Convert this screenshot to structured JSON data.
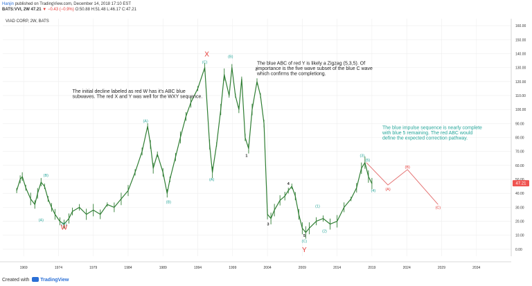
{
  "header": {
    "author": "Hanjin",
    "publish_text": "published on TradingView.com, December 14, 2018 17:10 EST",
    "ohlc_line": "BATS:VVI, 2W  47.21",
    "change": "▼ −0.43 (−0.9%)",
    "ohlc_values": "O:50.88 H:51.48 L:46.17 C:47.21"
  },
  "chart_title": "VIAD CORP, 2W, BATS",
  "price_badge": "47.21",
  "footer": {
    "created_with": "Created with",
    "brand": "TradingView"
  },
  "colors": {
    "candle": "#2e7d32",
    "wave_blue": "#26a69a",
    "wave_red": "#e53935",
    "projection": "#e57373",
    "grid": "#eeeeee",
    "badge": "#ef5350"
  },
  "chart_data": {
    "type": "line",
    "title": "VIAD CORP, 2W, BATS",
    "y_axis": {
      "side": "right",
      "ylim": [
        -5,
        165
      ],
      "ticks": [
        0,
        10,
        20,
        30,
        40,
        50,
        60,
        70,
        80,
        90,
        100,
        110,
        120,
        130,
        140,
        150,
        160
      ],
      "tick_labels": [
        "0.00",
        "10.00",
        "20.00",
        "30.00",
        "40.00",
        "50.00",
        "60.00",
        "70.00",
        "80.00",
        "90.00",
        "100.00",
        "110.00",
        "120.00",
        "130.00",
        "140.00",
        "150.00",
        "160.00"
      ]
    },
    "x_axis": {
      "xlim": [
        1966,
        2039
      ],
      "ticks": [
        1969,
        1974,
        1979,
        1984,
        1989,
        1994,
        1999,
        2004,
        2009,
        2014,
        2019,
        2024,
        2029,
        2034
      ],
      "tick_labels": [
        "1969",
        "1974",
        "1979",
        "1984",
        "1989",
        "1994",
        "1999",
        "2004",
        "2009",
        "2014",
        "2019",
        "2024",
        "2029",
        "2034"
      ]
    },
    "grid": true,
    "series": [
      {
        "values": [
          [
            1968.0,
            42
          ],
          [
            1968.5,
            50
          ],
          [
            1968.8,
            52
          ],
          [
            1969.3,
            44
          ],
          [
            1970.0,
            36
          ],
          [
            1970.6,
            32
          ],
          [
            1971.0,
            40
          ],
          [
            1971.5,
            48
          ],
          [
            1972.0,
            45
          ],
          [
            1972.5,
            36
          ],
          [
            1973.0,
            30
          ],
          [
            1973.5,
            25
          ],
          [
            1974.2,
            20
          ],
          [
            1974.8,
            18
          ],
          [
            1975.5,
            22
          ],
          [
            1976.0,
            27
          ],
          [
            1977.0,
            30
          ],
          [
            1978.0,
            25
          ],
          [
            1979.0,
            28
          ],
          [
            1980.0,
            25
          ],
          [
            1981.0,
            32
          ],
          [
            1982.0,
            30
          ],
          [
            1983.0,
            36
          ],
          [
            1984.0,
            42
          ],
          [
            1985.0,
            55
          ],
          [
            1986.0,
            70
          ],
          [
            1986.8,
            88
          ],
          [
            1987.2,
            75
          ],
          [
            1987.6,
            58
          ],
          [
            1988.2,
            68
          ],
          [
            1989.0,
            55
          ],
          [
            1989.6,
            40
          ],
          [
            1990.0,
            50
          ],
          [
            1990.8,
            66
          ],
          [
            1991.5,
            80
          ],
          [
            1992.3,
            95
          ],
          [
            1993.0,
            105
          ],
          [
            1994.0,
            115
          ],
          [
            1995.0,
            130
          ],
          [
            1995.7,
            75
          ],
          [
            1996.1,
            55
          ],
          [
            1996.7,
            75
          ],
          [
            1997.3,
            100
          ],
          [
            1997.8,
            125
          ],
          [
            1998.5,
            110
          ],
          [
            1998.9,
            130
          ],
          [
            1999.4,
            110
          ],
          [
            1999.9,
            100
          ],
          [
            2000.3,
            122
          ],
          [
            2000.8,
            80
          ],
          [
            2001.3,
            72
          ],
          [
            2001.8,
            100
          ],
          [
            2002.5,
            120
          ],
          [
            2003.0,
            110
          ],
          [
            2003.5,
            90
          ],
          [
            2004.0,
            25
          ],
          [
            2004.5,
            22
          ],
          [
            2005.0,
            28
          ],
          [
            2005.8,
            35
          ],
          [
            2006.5,
            38
          ],
          [
            2007.0,
            42
          ],
          [
            2007.5,
            45
          ],
          [
            2008.0,
            38
          ],
          [
            2008.5,
            25
          ],
          [
            2009.0,
            15
          ],
          [
            2009.5,
            12
          ],
          [
            2010.0,
            15
          ],
          [
            2011.0,
            20
          ],
          [
            2012.0,
            22
          ],
          [
            2013.0,
            18
          ],
          [
            2014.0,
            20
          ],
          [
            2015.0,
            30
          ],
          [
            2016.0,
            36
          ],
          [
            2016.8,
            44
          ],
          [
            2017.5,
            58
          ],
          [
            2018.0,
            62
          ],
          [
            2018.5,
            52
          ],
          [
            2019.0,
            47
          ]
        ]
      }
    ],
    "wave_labels": [
      {
        "text": "(A)",
        "x": 1971.5,
        "y": 20,
        "color": "blue"
      },
      {
        "text": "(B)",
        "x": 1972.2,
        "y": 52,
        "color": "blue"
      },
      {
        "text": "(C)",
        "x": 1974.8,
        "y": 17,
        "color": "blue"
      },
      {
        "text": "W",
        "x": 1974.8,
        "y": 14,
        "color": "red"
      },
      {
        "text": "(A)",
        "x": 1986.5,
        "y": 91,
        "color": "blue"
      },
      {
        "text": "(B)",
        "x": 1989.8,
        "y": 33,
        "color": "blue"
      },
      {
        "text": "(C)",
        "x": 1995.0,
        "y": 133,
        "color": "blue"
      },
      {
        "text": "X",
        "x": 1995.3,
        "y": 138,
        "color": "red"
      },
      {
        "text": "(A)",
        "x": 1996.0,
        "y": 49,
        "color": "blue"
      },
      {
        "text": "(B)",
        "x": 1998.7,
        "y": 137,
        "color": "blue"
      },
      {
        "text": "1",
        "x": 2001.0,
        "y": 66,
        "color": "black"
      },
      {
        "text": "2",
        "x": 2002.4,
        "y": 128,
        "color": "black"
      },
      {
        "text": "3",
        "x": 2004.1,
        "y": 17,
        "color": "black"
      },
      {
        "text": "4",
        "x": 2007.0,
        "y": 46,
        "color": "black"
      },
      {
        "text": "5",
        "x": 2009.3,
        "y": 9,
        "color": "black"
      },
      {
        "text": "(C)",
        "x": 2009.3,
        "y": 5,
        "color": "blue"
      },
      {
        "text": "Y",
        "x": 2009.3,
        "y": -2,
        "color": "red"
      },
      {
        "text": "(1)",
        "x": 2011.2,
        "y": 30,
        "color": "blue"
      },
      {
        "text": "(2)",
        "x": 2012.2,
        "y": 12,
        "color": "blue"
      },
      {
        "text": "(3)",
        "x": 2017.6,
        "y": 66,
        "color": "blue"
      },
      {
        "text": "(5)",
        "x": 2018.4,
        "y": 63,
        "color": "blue"
      },
      {
        "text": "(4)",
        "x": 2019.2,
        "y": 41,
        "color": "blue"
      },
      {
        "text": "(A)",
        "x": 2021.3,
        "y": 42,
        "color": "red"
      },
      {
        "text": "(B)",
        "x": 2024.1,
        "y": 58,
        "color": "red"
      },
      {
        "text": "(C)",
        "x": 2028.5,
        "y": 29,
        "color": "red"
      }
    ],
    "projection": [
      [
        2018.2,
        62
      ],
      [
        2021.3,
        46
      ],
      [
        2024.1,
        57
      ],
      [
        2028.5,
        32
      ]
    ],
    "annotations": [
      {
        "lines": [
          "The initial decline labeled as red W has it's ABC blue",
          "subwaves. The red X and Y was well for the WXY sequence."
        ],
        "x": 1976.0,
        "y": 112,
        "color": "black"
      },
      {
        "lines": [
          "The blue ABC of red Y is likely a Zigzag (5,3,5). Of",
          "importance is the five wave subset of the blue C wave",
          "which confirms the completiong."
        ],
        "x": 2002.5,
        "y": 132,
        "color": "black"
      },
      {
        "lines": [
          "The blue impulse sequence is nearly complete",
          "with blue 5 remaining. The red ABC would",
          "define the expected correction pathway."
        ],
        "x": 2020.5,
        "y": 86,
        "color": "blue"
      }
    ],
    "last_price": 47.21
  }
}
